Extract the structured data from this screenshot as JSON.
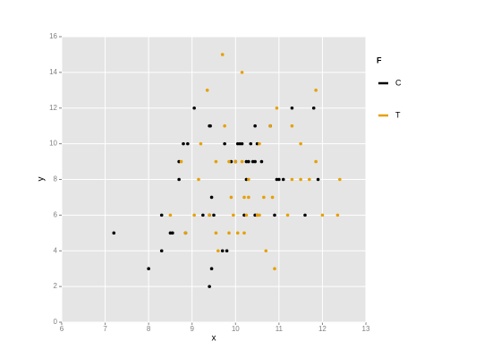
{
  "chart_data": {
    "type": "scatter",
    "x_label": "x",
    "y_label": "y",
    "legend_title": "F",
    "xlim": [
      6,
      13
    ],
    "xticks": [
      6,
      7,
      8,
      9,
      10,
      11,
      12,
      13
    ],
    "ylim": [
      0,
      16
    ],
    "yticks": [
      0,
      2,
      4,
      6,
      8,
      10,
      12,
      14,
      16
    ],
    "grid": true,
    "legend": "right",
    "series": [
      {
        "name": "C",
        "color": "#000000",
        "x": [
          7.2,
          8.0,
          8.3,
          8.3,
          8.5,
          8.55,
          8.7,
          8.7,
          8.8,
          8.85,
          8.9,
          9.05,
          9.25,
          9.4,
          9.42,
          9.4,
          9.45,
          9.45,
          9.5,
          9.4,
          9.7,
          9.75,
          9.8,
          9.9,
          10.0,
          10.05,
          10.1,
          10.15,
          10.2,
          10.25,
          10.25,
          10.3,
          10.35,
          10.4,
          10.45,
          10.45,
          10.5,
          10.45,
          10.5,
          10.6,
          10.8,
          10.9,
          10.95,
          11.0,
          11.1,
          11.3,
          11.6,
          11.8,
          11.9
        ],
        "values": [
          5,
          3,
          4,
          6,
          5,
          5,
          8,
          9,
          10,
          5,
          10,
          12,
          6,
          11,
          11,
          2,
          3,
          7,
          6,
          6,
          4,
          10,
          4,
          9,
          9,
          10,
          10,
          10,
          6,
          9,
          8,
          9,
          10,
          9,
          9,
          11,
          10,
          6,
          6,
          9,
          11,
          6,
          8,
          8,
          8,
          12,
          6,
          12,
          8
        ]
      },
      {
        "name": "T",
        "color": "#e6a000",
        "x": [
          8.5,
          8.75,
          8.85,
          9.05,
          9.15,
          9.2,
          9.35,
          9.4,
          9.55,
          9.55,
          9.6,
          9.7,
          9.75,
          9.85,
          9.85,
          9.9,
          9.95,
          10.0,
          10.05,
          10.15,
          10.15,
          10.2,
          10.2,
          10.25,
          10.3,
          10.3,
          10.5,
          10.55,
          10.55,
          10.65,
          10.7,
          10.8,
          10.85,
          10.9,
          10.95,
          11.2,
          11.3,
          11.3,
          11.5,
          11.5,
          11.7,
          11.85,
          11.85,
          12.0,
          12.35,
          12.4
        ],
        "values": [
          6,
          9,
          5,
          6,
          8,
          10,
          13,
          6,
          9,
          5,
          4,
          15,
          11,
          9,
          5,
          7,
          6,
          9,
          5,
          14,
          9,
          7,
          5,
          6,
          7,
          8,
          6,
          6,
          10,
          7,
          4,
          11,
          7,
          3,
          12,
          6,
          11,
          8,
          10,
          8,
          8,
          13,
          9,
          6,
          6,
          8
        ]
      }
    ]
  }
}
